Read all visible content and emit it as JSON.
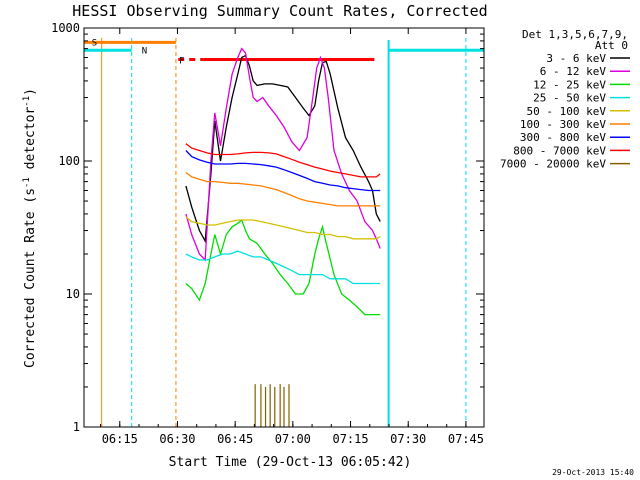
{
  "chart_data": {
    "type": "line",
    "title": "HESSI Observing Summary Count Rates, Corrected",
    "xlabel": "Start Time (29-Oct-13 06:05:42)",
    "ylabel": "Corrected Count Rate (s-1 detector-1)",
    "ylabel_parts": {
      "prefix": "Corrected Count Rate (s",
      "exp1": "-1",
      "mid": " detector",
      "exp2": "-1",
      "suffix": ")"
    },
    "x_start_time": "06:05:42",
    "xlim_minutes": [
      0,
      104
    ],
    "ylim": [
      1,
      1000
    ],
    "yscale": "log",
    "grid": false,
    "legend_placement": "top-right outside",
    "x_ticks": [
      {
        "minutes": 9.3,
        "label": "06:15"
      },
      {
        "minutes": 24.3,
        "label": "06:30"
      },
      {
        "minutes": 39.3,
        "label": "06:45"
      },
      {
        "minutes": 54.3,
        "label": "07:00"
      },
      {
        "minutes": 69.3,
        "label": "07:15"
      },
      {
        "minutes": 84.3,
        "label": "07:30"
      },
      {
        "minutes": 99.3,
        "label": "07:45"
      }
    ],
    "y_ticks": [
      {
        "value": 1,
        "label": "1"
      },
      {
        "value": 10,
        "label": "10"
      },
      {
        "value": 100,
        "label": "100"
      },
      {
        "value": 1000,
        "label": "1000"
      }
    ],
    "legend_header": [
      "Det 1,3,5,6,7,9,",
      "Att 0"
    ],
    "series": [
      {
        "name": "3 - 6 keV",
        "color": "#000000",
        "points": [
          [
            26.5,
            65
          ],
          [
            28,
            45
          ],
          [
            30,
            30
          ],
          [
            31.5,
            25
          ],
          [
            33,
            80
          ],
          [
            34,
            200
          ],
          [
            35.5,
            100
          ],
          [
            37,
            180
          ],
          [
            38.5,
            300
          ],
          [
            40,
            450
          ],
          [
            41,
            600
          ],
          [
            42,
            620
          ],
          [
            43,
            520
          ],
          [
            44,
            400
          ],
          [
            45,
            370
          ],
          [
            47,
            380
          ],
          [
            49,
            380
          ],
          [
            51,
            370
          ],
          [
            53,
            360
          ],
          [
            55,
            300
          ],
          [
            57,
            250
          ],
          [
            58.5,
            220
          ],
          [
            60,
            260
          ],
          [
            61,
            400
          ],
          [
            62,
            550
          ],
          [
            63,
            560
          ],
          [
            64,
            450
          ],
          [
            66,
            250
          ],
          [
            68,
            150
          ],
          [
            70,
            120
          ],
          [
            72,
            90
          ],
          [
            74,
            70
          ],
          [
            75,
            60
          ],
          [
            76,
            40
          ],
          [
            77,
            35
          ]
        ]
      },
      {
        "name": "6 - 12 keV",
        "color": "#dd00dd",
        "points": [
          [
            26.5,
            40
          ],
          [
            28,
            28
          ],
          [
            30,
            20
          ],
          [
            31.5,
            18
          ],
          [
            33,
            100
          ],
          [
            34,
            230
          ],
          [
            35.5,
            130
          ],
          [
            37,
            250
          ],
          [
            38.5,
            450
          ],
          [
            40,
            600
          ],
          [
            41,
            700
          ],
          [
            42,
            650
          ],
          [
            43,
            430
          ],
          [
            44,
            300
          ],
          [
            45,
            280
          ],
          [
            46.5,
            300
          ],
          [
            48,
            260
          ],
          [
            50,
            220
          ],
          [
            52,
            180
          ],
          [
            54,
            140
          ],
          [
            56,
            120
          ],
          [
            58,
            150
          ],
          [
            59.5,
            300
          ],
          [
            60.5,
            500
          ],
          [
            61.5,
            600
          ],
          [
            62.5,
            500
          ],
          [
            63.5,
            300
          ],
          [
            65,
            120
          ],
          [
            67,
            80
          ],
          [
            69,
            60
          ],
          [
            71,
            50
          ],
          [
            73,
            35
          ],
          [
            75,
            30
          ],
          [
            76,
            26
          ],
          [
            77,
            22
          ]
        ]
      },
      {
        "name": "12 - 25 keV",
        "color": "#00dd00",
        "points": [
          [
            26.5,
            12
          ],
          [
            28,
            11
          ],
          [
            30,
            9
          ],
          [
            31.5,
            12
          ],
          [
            33,
            20
          ],
          [
            34,
            28
          ],
          [
            35.5,
            20
          ],
          [
            37,
            28
          ],
          [
            38.5,
            32
          ],
          [
            40,
            34
          ],
          [
            41,
            36
          ],
          [
            42,
            30
          ],
          [
            43,
            26
          ],
          [
            45,
            24
          ],
          [
            47,
            20
          ],
          [
            49,
            17
          ],
          [
            51,
            14
          ],
          [
            53,
            12
          ],
          [
            55,
            10
          ],
          [
            57,
            10
          ],
          [
            58.5,
            12
          ],
          [
            60,
            20
          ],
          [
            61,
            26
          ],
          [
            62,
            32
          ],
          [
            63,
            24
          ],
          [
            65,
            14
          ],
          [
            67,
            10
          ],
          [
            69,
            9
          ],
          [
            71,
            8
          ],
          [
            73,
            7
          ],
          [
            75,
            7
          ],
          [
            77,
            7
          ]
        ]
      },
      {
        "name": "25 - 50 keV",
        "color": "#00e0e0",
        "points": [
          [
            26.5,
            20
          ],
          [
            28,
            19
          ],
          [
            30,
            18
          ],
          [
            32,
            18
          ],
          [
            34,
            19
          ],
          [
            36,
            20
          ],
          [
            38,
            20
          ],
          [
            40,
            21
          ],
          [
            42,
            20
          ],
          [
            44,
            19
          ],
          [
            46,
            19
          ],
          [
            48,
            18
          ],
          [
            50,
            17
          ],
          [
            52,
            16
          ],
          [
            54,
            15
          ],
          [
            56,
            14
          ],
          [
            58,
            14
          ],
          [
            60,
            14
          ],
          [
            62,
            14
          ],
          [
            64,
            13
          ],
          [
            66,
            13
          ],
          [
            68,
            13
          ],
          [
            70,
            12
          ],
          [
            72,
            12
          ],
          [
            74,
            12
          ],
          [
            76,
            12
          ],
          [
            77,
            12
          ]
        ]
      },
      {
        "name": "50 - 100 keV",
        "color": "#d4c000",
        "points": [
          [
            26.5,
            38
          ],
          [
            28,
            35
          ],
          [
            30,
            34
          ],
          [
            32,
            33
          ],
          [
            34,
            33
          ],
          [
            36,
            34
          ],
          [
            38,
            35
          ],
          [
            40,
            36
          ],
          [
            42,
            36
          ],
          [
            44,
            36
          ],
          [
            46,
            35
          ],
          [
            48,
            34
          ],
          [
            50,
            33
          ],
          [
            52,
            32
          ],
          [
            54,
            31
          ],
          [
            56,
            30
          ],
          [
            58,
            29
          ],
          [
            60,
            29
          ],
          [
            62,
            28
          ],
          [
            64,
            28
          ],
          [
            66,
            27
          ],
          [
            68,
            27
          ],
          [
            70,
            26
          ],
          [
            72,
            26
          ],
          [
            74,
            26
          ],
          [
            76,
            26
          ],
          [
            77,
            27
          ]
        ]
      },
      {
        "name": "100 - 300 keV",
        "color": "#ff7f00",
        "points": [
          [
            26.5,
            82
          ],
          [
            28,
            76
          ],
          [
            30,
            73
          ],
          [
            32,
            70
          ],
          [
            34,
            70
          ],
          [
            36,
            69
          ],
          [
            38,
            68
          ],
          [
            40,
            68
          ],
          [
            42,
            67
          ],
          [
            44,
            66
          ],
          [
            46,
            65
          ],
          [
            48,
            63
          ],
          [
            50,
            61
          ],
          [
            52,
            58
          ],
          [
            54,
            55
          ],
          [
            56,
            52
          ],
          [
            58,
            50
          ],
          [
            60,
            49
          ],
          [
            62,
            48
          ],
          [
            64,
            47
          ],
          [
            66,
            46
          ],
          [
            68,
            46
          ],
          [
            70,
            46
          ],
          [
            72,
            46
          ],
          [
            74,
            46
          ],
          [
            76,
            46
          ],
          [
            77,
            46
          ]
        ]
      },
      {
        "name": "300 - 800 keV",
        "color": "#0000ff",
        "points": [
          [
            26.5,
            120
          ],
          [
            28,
            108
          ],
          [
            30,
            102
          ],
          [
            32,
            98
          ],
          [
            34,
            95
          ],
          [
            36,
            95
          ],
          [
            38,
            95
          ],
          [
            40,
            96
          ],
          [
            42,
            96
          ],
          [
            44,
            95
          ],
          [
            46,
            94
          ],
          [
            48,
            92
          ],
          [
            50,
            90
          ],
          [
            52,
            86
          ],
          [
            54,
            82
          ],
          [
            56,
            78
          ],
          [
            58,
            74
          ],
          [
            60,
            70
          ],
          [
            62,
            68
          ],
          [
            64,
            66
          ],
          [
            66,
            65
          ],
          [
            68,
            63
          ],
          [
            70,
            62
          ],
          [
            72,
            61
          ],
          [
            74,
            60
          ],
          [
            76,
            60
          ],
          [
            77,
            60
          ]
        ]
      },
      {
        "name": "800 - 7000 keV",
        "color": "#ff0000",
        "points": [
          [
            26.5,
            135
          ],
          [
            28,
            125
          ],
          [
            30,
            120
          ],
          [
            32,
            115
          ],
          [
            34,
            112
          ],
          [
            36,
            112
          ],
          [
            38,
            112
          ],
          [
            40,
            113
          ],
          [
            42,
            115
          ],
          [
            44,
            116
          ],
          [
            46,
            116
          ],
          [
            48,
            115
          ],
          [
            50,
            113
          ],
          [
            52,
            108
          ],
          [
            54,
            103
          ],
          [
            56,
            98
          ],
          [
            58,
            94
          ],
          [
            60,
            90
          ],
          [
            62,
            87
          ],
          [
            64,
            84
          ],
          [
            66,
            82
          ],
          [
            68,
            80
          ],
          [
            70,
            78
          ],
          [
            72,
            76
          ],
          [
            74,
            76
          ],
          [
            76,
            76
          ],
          [
            77,
            80
          ]
        ]
      },
      {
        "name": "7000 - 20000 keV",
        "color": "#806000",
        "spikes": [
          [
            44.5,
            2.1
          ],
          [
            46,
            2.1
          ],
          [
            47.2,
            2
          ],
          [
            48.4,
            2.1
          ],
          [
            49.6,
            2
          ],
          [
            51,
            2.1
          ],
          [
            52,
            2
          ],
          [
            53.3,
            2.1
          ]
        ]
      }
    ],
    "annotations": [
      {
        "label": "S",
        "color": "#ff7f00",
        "x_range": [
          0,
          23.9
        ],
        "y": 780,
        "text_x": 2
      },
      {
        "label": "N",
        "color": "#00e0e0",
        "x_range": [
          0,
          12.4
        ],
        "y": 680,
        "text_x": 15
      },
      {
        "label": "F",
        "color": "#ff0000",
        "x_range": [
          24.5,
          75.5
        ],
        "y": 580,
        "text_x": 24.7,
        "dashed_until": 31
      }
    ],
    "markers": {
      "orange_solid": [
        4.6
      ],
      "orange_dashed": [
        23.9
      ],
      "cyan_dashed": [
        12.4,
        99.3
      ],
      "cyan_solid": [
        79.2
      ]
    },
    "right_cyan_level": 680
  },
  "timestamp": "29-Oct-2013 15:40"
}
